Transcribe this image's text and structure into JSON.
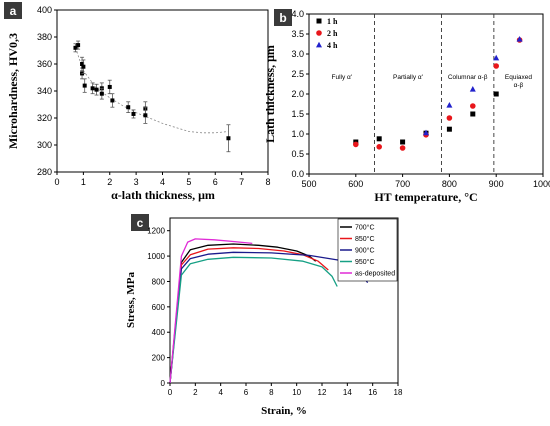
{
  "chart_data": [
    {
      "panel": "a",
      "type": "scatter",
      "xlabel": "α-lath thickness, μm",
      "ylabel": "Microhardness, HV0,3",
      "xlim": [
        0,
        8
      ],
      "ylim": [
        280,
        400
      ],
      "xticks": [
        "0",
        "1",
        "2",
        "3",
        "4",
        "5",
        "6",
        "7",
        "8"
      ],
      "yticks": [
        "280",
        "300",
        "320",
        "340",
        "360",
        "380",
        "400"
      ],
      "points": [
        {
          "x": 0.7,
          "y": 372,
          "err": 3
        },
        {
          "x": 0.8,
          "y": 374,
          "err": 3
        },
        {
          "x": 0.95,
          "y": 360,
          "err": 5
        },
        {
          "x": 0.95,
          "y": 353,
          "err": 4
        },
        {
          "x": 1.0,
          "y": 358,
          "err": 5
        },
        {
          "x": 1.05,
          "y": 344,
          "err": 5
        },
        {
          "x": 1.35,
          "y": 342,
          "err": 4
        },
        {
          "x": 1.5,
          "y": 341,
          "err": 4
        },
        {
          "x": 1.7,
          "y": 342,
          "err": 4
        },
        {
          "x": 1.7,
          "y": 338,
          "err": 4
        },
        {
          "x": 2.0,
          "y": 343,
          "err": 5
        },
        {
          "x": 2.1,
          "y": 333,
          "err": 5
        },
        {
          "x": 2.7,
          "y": 328,
          "err": 4
        },
        {
          "x": 2.9,
          "y": 323,
          "err": 3
        },
        {
          "x": 3.35,
          "y": 327,
          "err": 5
        },
        {
          "x": 3.35,
          "y": 322,
          "err": 6
        },
        {
          "x": 6.5,
          "y": 305,
          "err": 10
        }
      ],
      "trend_x": [
        0.7,
        1.0,
        1.5,
        2.0,
        2.5,
        3.0,
        3.5,
        4.0,
        4.5,
        5.0,
        5.5,
        6.0,
        6.5
      ],
      "trend_y": [
        372,
        355,
        342,
        335,
        329,
        324,
        320,
        316,
        313,
        310,
        309,
        309,
        310
      ]
    },
    {
      "panel": "b",
      "type": "scatter",
      "xlabel": "HT temperature, °C",
      "ylabel": "Lath thickness, μm",
      "xlim": [
        500,
        1000
      ],
      "ylim": [
        0,
        4
      ],
      "xticks": [
        "500",
        "600",
        "700",
        "800",
        "900",
        "1000"
      ],
      "yticks": [
        "0.0",
        "0.5",
        "1.0",
        "1.5",
        "2.0",
        "2.5",
        "3.0",
        "3.5",
        "4.0"
      ],
      "region_boundaries": [
        640,
        783,
        895
      ],
      "regions": [
        "Fully α'",
        "Partially α'",
        "Columnar α-β",
        "Equiaxed α-β"
      ],
      "series": [
        {
          "name": "1 h",
          "color": "#000000",
          "marker": "square",
          "points": [
            [
              600,
              0.8
            ],
            [
              650,
              0.88
            ],
            [
              700,
              0.8
            ],
            [
              750,
              1.02
            ],
            [
              800,
              1.12
            ],
            [
              850,
              1.5
            ],
            [
              900,
              2.0
            ]
          ]
        },
        {
          "name": "2 h",
          "color": "#e8161b",
          "marker": "circle",
          "points": [
            [
              600,
              0.74
            ],
            [
              650,
              0.68
            ],
            [
              700,
              0.65
            ],
            [
              750,
              0.98
            ],
            [
              800,
              1.4
            ],
            [
              850,
              1.7
            ],
            [
              900,
              2.7
            ],
            [
              950,
              3.35
            ]
          ]
        },
        {
          "name": "4 h",
          "color": "#2222cc",
          "marker": "triangle",
          "points": [
            [
              750,
              1.03
            ],
            [
              800,
              1.72
            ],
            [
              850,
              2.12
            ],
            [
              900,
              2.9
            ],
            [
              950,
              3.37
            ]
          ]
        }
      ]
    },
    {
      "panel": "c",
      "type": "line",
      "xlabel": "Strain, %",
      "ylabel": "Stress, MPa",
      "xlim": [
        0,
        18
      ],
      "ylim": [
        0,
        1300
      ],
      "xticks": [
        "0",
        "2",
        "4",
        "6",
        "8",
        "10",
        "12",
        "14",
        "16",
        "18"
      ],
      "yticks": [
        "0",
        "200",
        "400",
        "600",
        "800",
        "1000",
        "1200"
      ],
      "series": [
        {
          "name": "700°C",
          "color": "#000000",
          "x": [
            0,
            0.9,
            1.6,
            3,
            5,
            7,
            8.5,
            10,
            11,
            11.5
          ],
          "y": [
            0,
            950,
            1050,
            1085,
            1095,
            1085,
            1070,
            1040,
            1000,
            960
          ]
        },
        {
          "name": "850°C",
          "color": "#e8161b",
          "x": [
            0,
            0.9,
            1.6,
            3,
            5,
            7,
            9,
            10.5,
            11.7,
            12.5
          ],
          "y": [
            0,
            930,
            1010,
            1055,
            1065,
            1060,
            1040,
            1010,
            960,
            890
          ]
        },
        {
          "name": "900°C",
          "color": "#1a1a8c",
          "x": [
            0,
            0.9,
            1.6,
            3,
            5,
            8,
            11,
            13.5,
            15,
            15.6
          ],
          "y": [
            0,
            900,
            980,
            1015,
            1030,
            1025,
            1005,
            965,
            880,
            790
          ]
        },
        {
          "name": "950°C",
          "color": "#16a085",
          "x": [
            0,
            0.9,
            1.6,
            3,
            5,
            8,
            10.5,
            12,
            12.8,
            13.2
          ],
          "y": [
            0,
            850,
            940,
            975,
            990,
            985,
            960,
            915,
            840,
            760
          ]
        },
        {
          "name": "as-deposited",
          "color": "#e02ad6",
          "x": [
            0,
            0.9,
            1.4,
            2,
            3.5,
            5,
            6.5
          ],
          "y": [
            0,
            1000,
            1110,
            1135,
            1128,
            1115,
            1100
          ]
        }
      ]
    }
  ]
}
